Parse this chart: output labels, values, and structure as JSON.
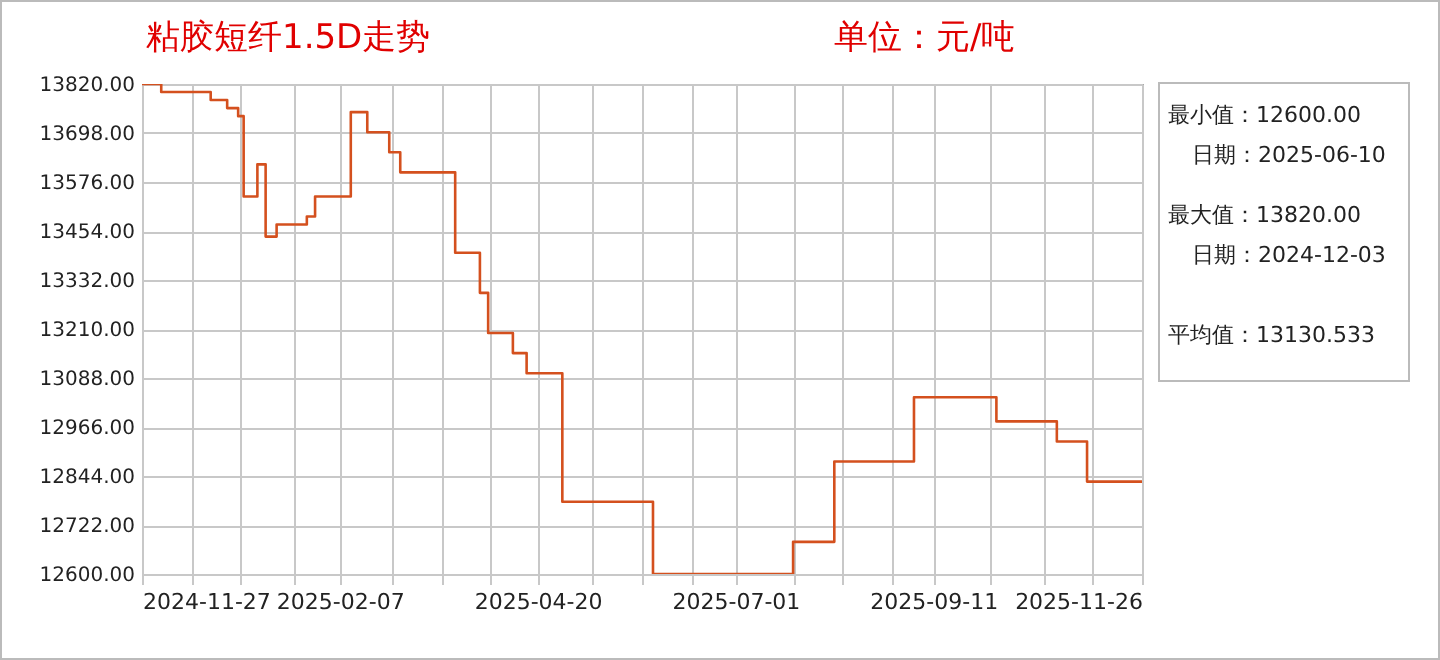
{
  "chart_data": {
    "type": "step",
    "title": "粘胶短纤1.5D走势",
    "subtitle": "单位：元/吨",
    "x": [
      "2024-11-27",
      "2024-12-04",
      "2024-12-22",
      "2024-12-28",
      "2025-01-01",
      "2025-01-03",
      "2025-01-08",
      "2025-01-11",
      "2025-01-15",
      "2025-01-26",
      "2025-01-29",
      "2025-02-11",
      "2025-02-17",
      "2025-02-25",
      "2025-03-01",
      "2025-03-21",
      "2025-03-30",
      "2025-04-02",
      "2025-04-11",
      "2025-04-16",
      "2025-04-29",
      "2025-06-01",
      "2025-07-22",
      "2025-08-06",
      "2025-09-04",
      "2025-10-04",
      "2025-10-26",
      "2025-11-06",
      "2025-11-26"
    ],
    "series": [
      {
        "color": "#d4501e",
        "values": [
          13820,
          13800,
          13780,
          13760,
          13740,
          13540,
          13620,
          13440,
          13470,
          13490,
          13540,
          13750,
          13700,
          13650,
          13600,
          13400,
          13300,
          13200,
          13150,
          13100,
          12780,
          12600,
          12680,
          12880,
          13040,
          12980,
          12930,
          12830,
          12830
        ]
      }
    ],
    "xlim": [
      "2024-11-27",
      "2025-11-26"
    ],
    "xticks": [
      "2024-11-27",
      {
        "value": "2024-12-15",
        "label": null
      },
      {
        "value": "2025-01-02",
        "label": null
      },
      {
        "value": "2025-01-21",
        "label": null
      },
      "2025-02-07",
      {
        "value": "2025-02-26",
        "label": null
      },
      {
        "value": "2025-03-16",
        "label": null
      },
      {
        "value": "2025-04-03",
        "label": null
      },
      "2025-04-20",
      {
        "value": "2025-05-10",
        "label": null
      },
      {
        "value": "2025-05-28",
        "label": null
      },
      {
        "value": "2025-06-15",
        "label": null
      },
      "2025-07-01",
      {
        "value": "2025-07-22",
        "label": null
      },
      {
        "value": "2025-08-09",
        "label": null
      },
      {
        "value": "2025-08-27",
        "label": null
      },
      "2025-09-11",
      {
        "value": "2025-10-02",
        "label": null
      },
      {
        "value": "2025-10-21",
        "label": null
      },
      {
        "value": "2025-11-08",
        "label": null
      },
      "2025-11-26"
    ],
    "ylim": [
      12600,
      13820
    ],
    "yticks": [
      {
        "value": 12600,
        "label": "12600.00"
      },
      {
        "value": 12722,
        "label": "12722.00"
      },
      {
        "value": 12844,
        "label": "12844.00"
      },
      {
        "value": 12966,
        "label": "12966.00"
      },
      {
        "value": 13088,
        "label": "13088.00"
      },
      {
        "value": 13210,
        "label": "13210.00"
      },
      {
        "value": 13332,
        "label": "13332.00"
      },
      {
        "value": 13454,
        "label": "13454.00"
      },
      {
        "value": 13576,
        "label": "13576.00"
      },
      {
        "value": 13698,
        "label": "13698.00"
      },
      {
        "value": 13820,
        "label": "13820.00"
      }
    ],
    "grid": true,
    "annotations": [
      "最小值：12600.00",
      "日期：2025-06-10",
      "最大值：13820.00",
      "日期：2024-12-03",
      "平均值：13130.533"
    ]
  }
}
